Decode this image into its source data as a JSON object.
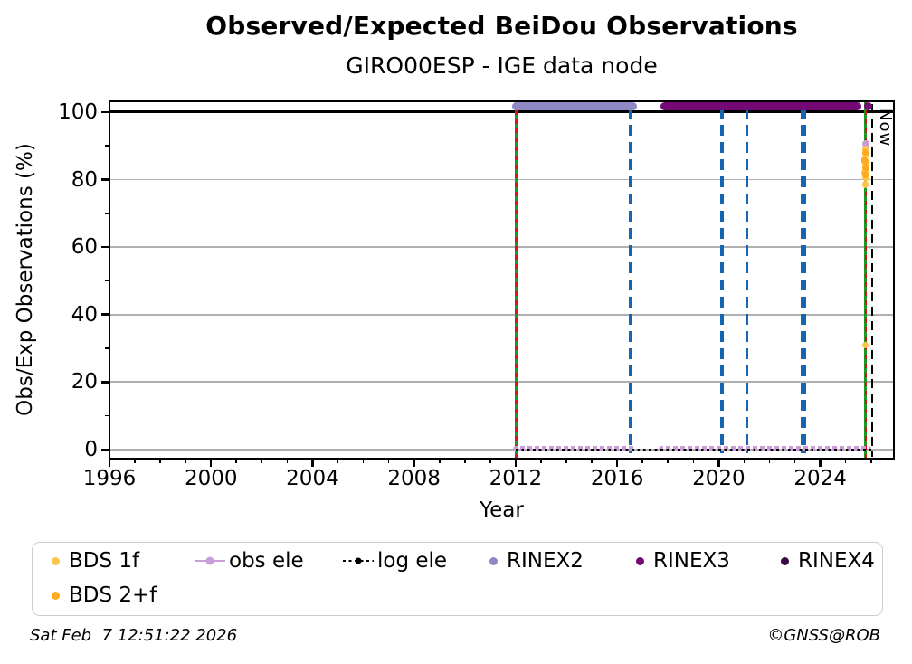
{
  "page": {
    "title": "Observed/Expected BeiDou Observations",
    "subtitle": "GIRO00ESP - IGE data node",
    "footer_left": "Sat Feb  7 12:51:22 2026",
    "footer_right": "©GNSS@ROB"
  },
  "colors": {
    "bds_1f": "#FAC44E",
    "bds_2f": "#FFA91E",
    "obs_ele": "#CA9DDA",
    "log_ele": "#000000",
    "rinex2": "#8E88C5",
    "rinex3": "#740874",
    "rinex4": "#3A0A42",
    "event_green": "#229622",
    "event_red": "#DC1414",
    "gap_blue": "#1565B4",
    "now_line": "#000000",
    "grid_gray": "#B0B0B0",
    "ref_100": "#000000"
  },
  "legend": {
    "items": [
      {
        "label": "BDS 1f",
        "marker": "dot",
        "color_key": "bds_1f"
      },
      {
        "label": "obs ele",
        "marker": "line-dot",
        "color_key": "obs_ele"
      },
      {
        "label": "log ele",
        "marker": "dotted-line-dot",
        "color_key": "log_ele"
      },
      {
        "label": "RINEX2",
        "marker": "dot",
        "color_key": "rinex2"
      },
      {
        "label": "RINEX3",
        "marker": "dot",
        "color_key": "rinex3"
      },
      {
        "label": "RINEX4",
        "marker": "dot",
        "color_key": "rinex4"
      },
      {
        "label": "BDS 2+f",
        "marker": "dot",
        "color_key": "bds_2f"
      }
    ]
  },
  "chart_data": {
    "type": "line",
    "title": "Observed/Expected BeiDou Observations",
    "subtitle": "GIRO00ESP - IGE data node",
    "xlabel": "Year",
    "ylabel": "Obs/Exp Observations (%)",
    "xlim": [
      1996,
      2026.9
    ],
    "ylim": [
      -2.7,
      103.2
    ],
    "xticks": [
      1996,
      2000,
      2004,
      2008,
      2012,
      2016,
      2020,
      2024
    ],
    "yticks": [
      0,
      20,
      40,
      60,
      80,
      100
    ],
    "grid": "horizontal-only",
    "reference_hline_y": 100,
    "now_marker": {
      "x": 2026.05,
      "label": "Now"
    },
    "event_lines_green_red": [
      2012.02,
      2025.79
    ],
    "data_gap_lines_blue": [
      {
        "x": 2016.53,
        "weight": 3.2
      },
      {
        "x": 2020.12,
        "weight": 4.0
      },
      {
        "x": 2021.12,
        "weight": 3.0
      },
      {
        "x": 2023.35,
        "weight": 6.0
      }
    ],
    "series": [
      {
        "name": "RINEX2",
        "color_key": "rinex2",
        "style": "thick-line",
        "y": 101.7,
        "segments": [
          [
            2012.02,
            2016.63
          ]
        ]
      },
      {
        "name": "RINEX3",
        "color_key": "rinex3",
        "style": "thick-line",
        "y": 101.7,
        "segments": [
          [
            2017.85,
            2025.47
          ]
        ],
        "points": [
          [
            2025.87,
            101.7
          ]
        ],
        "point_size": 9
      },
      {
        "name": "obs ele",
        "color_key": "obs_ele",
        "style": "dotted-band",
        "y": 0.3,
        "segments": [
          [
            2012.02,
            2016.63
          ],
          [
            2017.74,
            2025.9
          ]
        ],
        "points": [
          [
            2025.8,
            90.5
          ]
        ],
        "point_size": 8
      },
      {
        "name": "log ele",
        "color_key": "log_ele",
        "style": "dotted-line",
        "y": 0,
        "segments": [
          [
            2012.02,
            2026.0
          ]
        ]
      },
      {
        "name": "BDS 1f",
        "color_key": "bds_1f",
        "style": "points",
        "point_size": 7.5,
        "points": [
          [
            2025.77,
            89
          ],
          [
            2025.8,
            87.5
          ],
          [
            2025.75,
            86
          ],
          [
            2025.8,
            85
          ],
          [
            2025.77,
            84
          ],
          [
            2025.8,
            83
          ],
          [
            2025.75,
            82
          ],
          [
            2025.8,
            80.5
          ],
          [
            2025.78,
            78.5
          ],
          [
            2025.78,
            31
          ]
        ]
      },
      {
        "name": "BDS 2+f",
        "color_key": "bds_2f",
        "style": "points",
        "point_size": 7.5,
        "points": [
          [
            2025.78,
            88
          ],
          [
            2025.76,
            85.5
          ],
          [
            2025.8,
            83.5
          ],
          [
            2025.77,
            81.5
          ]
        ]
      }
    ]
  }
}
